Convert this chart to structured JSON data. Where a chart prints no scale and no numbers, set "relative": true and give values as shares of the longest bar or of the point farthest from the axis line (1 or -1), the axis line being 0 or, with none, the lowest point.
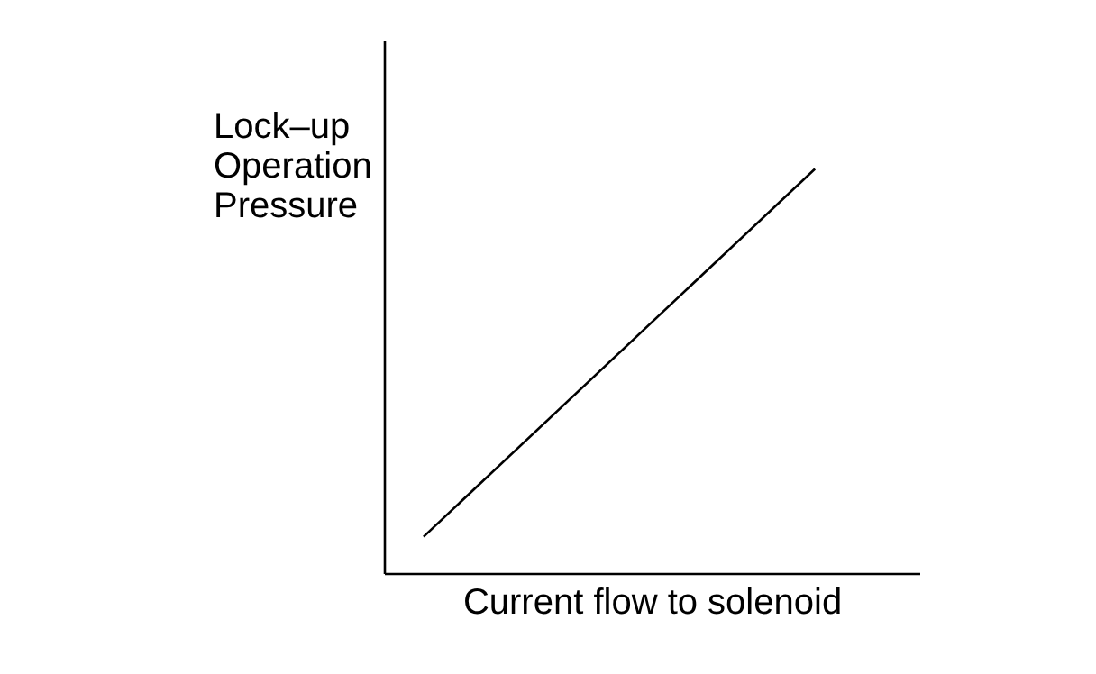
{
  "chart_data": {
    "type": "line",
    "relative": true,
    "xlabel": "Current flow to solenoid",
    "ylabel": "Lock–up\nOperation\nPressure",
    "categories": [
      null,
      null
    ],
    "series": [
      {
        "color": "#000000",
        "values": [
          0.09,
          1
        ]
      }
    ],
    "grid": false,
    "legend": false,
    "tick_labels": false,
    "marker": "none",
    "line_style": "solid"
  }
}
